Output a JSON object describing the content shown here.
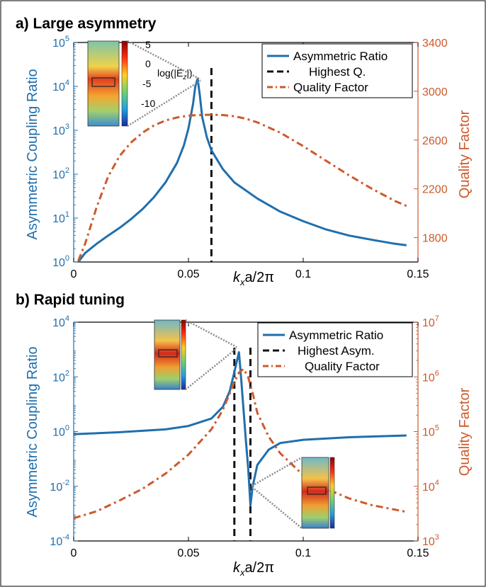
{
  "colors": {
    "blue": "#1f6fad",
    "orange": "#cc5a2b",
    "black": "#111111",
    "gray": "#888888"
  },
  "chart_data": [
    {
      "panel": "a",
      "title": "a) Large asymmetry",
      "type": "line",
      "x_range": [
        0,
        0.15
      ],
      "x_ticks": [
        "0",
        "0.05",
        "0.1",
        "0.15"
      ],
      "x_tick_values": [
        0,
        0.05,
        0.1,
        0.15
      ],
      "xlabel": {
        "k": "k",
        "sub": "x",
        "rest": "a/2π"
      },
      "ylabel_left": "Asymmetric Coupling Ratio",
      "ylabel_right": "Quality Factor",
      "y_left_scale": "log",
      "y_left_range_exp": [
        0,
        5
      ],
      "y_left_ticks_exp": [
        0,
        1,
        2,
        3,
        4,
        5
      ],
      "y_right_scale": "linear",
      "y_right_range": [
        1600,
        3400
      ],
      "y_right_ticks": [
        1800,
        2200,
        2600,
        3000,
        3400
      ],
      "legend": {
        "position": "top-right",
        "entries": [
          "Asymmetric Ratio",
          "Highest Q.",
          "Quality Factor"
        ]
      },
      "series": [
        {
          "name": "Asymmetric Ratio",
          "axis": "left",
          "style": "solid",
          "x": [
            0.002,
            0.005,
            0.01,
            0.015,
            0.02,
            0.025,
            0.03,
            0.035,
            0.04,
            0.045,
            0.048,
            0.05,
            0.052,
            0.053,
            0.054,
            0.055,
            0.056,
            0.058,
            0.06,
            0.065,
            0.07,
            0.08,
            0.09,
            0.1,
            0.11,
            0.12,
            0.13,
            0.14,
            0.145
          ],
          "y": [
            1,
            1.6,
            2.6,
            4,
            6,
            9.5,
            16,
            30,
            65,
            180,
            450,
            1100,
            4000,
            10000,
            15000,
            6000,
            2000,
            700,
            350,
            130,
            65,
            28,
            14,
            8.5,
            5.5,
            4,
            3.2,
            2.6,
            2.4
          ]
        },
        {
          "name": "Quality Factor",
          "axis": "right",
          "style": "dashdot",
          "x": [
            0.002,
            0.005,
            0.01,
            0.015,
            0.02,
            0.025,
            0.03,
            0.035,
            0.04,
            0.045,
            0.05,
            0.055,
            0.06,
            0.065,
            0.07,
            0.075,
            0.08,
            0.09,
            0.1,
            0.11,
            0.12,
            0.13,
            0.14,
            0.145
          ],
          "y": [
            1610,
            1750,
            2050,
            2300,
            2470,
            2580,
            2660,
            2720,
            2760,
            2785,
            2800,
            2805,
            2808,
            2805,
            2795,
            2775,
            2745,
            2660,
            2550,
            2430,
            2310,
            2200,
            2100,
            2060
          ]
        }
      ],
      "vlines": [
        {
          "name": "Highest Q.",
          "x": 0.06
        }
      ],
      "inset": {
        "colorbar_ticks": [
          "5",
          "0",
          "-5",
          "-10"
        ],
        "colorbar_label": {
          "pre": "log(|E",
          "sub": "z",
          "post": "|)"
        },
        "points_to_x": 0.054
      }
    },
    {
      "panel": "b",
      "title": "b) Rapid tuning",
      "type": "line",
      "x_range": [
        0,
        0.15
      ],
      "x_ticks": [
        "0",
        "0.05",
        "0.1",
        "0.15"
      ],
      "x_tick_values": [
        0,
        0.05,
        0.1,
        0.15
      ],
      "xlabel": {
        "k": "k",
        "sub": "x",
        "rest": "a/2π"
      },
      "ylabel_left": "Asymmetric Coupling Ratio",
      "ylabel_right": "Quality Factor",
      "y_left_scale": "log",
      "y_left_range_exp": [
        -4,
        4
      ],
      "y_left_ticks_exp": [
        -4,
        -2,
        0,
        2,
        4
      ],
      "y_right_scale": "log",
      "y_right_range_exp": [
        3,
        7
      ],
      "y_right_ticks_exp": [
        3,
        4,
        5,
        6,
        7
      ],
      "legend": {
        "position": "top-right",
        "entries": [
          "Asymmetric Ratio",
          "Highest Asym.",
          "Quality Factor"
        ]
      },
      "series": [
        {
          "name": "Asymmetric Ratio",
          "axis": "left",
          "style": "solid",
          "x": [
            0,
            0.02,
            0.04,
            0.05,
            0.06,
            0.065,
            0.068,
            0.07,
            0.072,
            0.073,
            0.074,
            0.075,
            0.076,
            0.0765,
            0.077,
            0.078,
            0.08,
            0.085,
            0.09,
            0.1,
            0.12,
            0.145
          ],
          "y": [
            0.8,
            0.95,
            1.2,
            1.6,
            3,
            8,
            30,
            150,
            800,
            80,
            6,
            0.5,
            0.05,
            0.01,
            0.002,
            0.01,
            0.06,
            0.22,
            0.38,
            0.5,
            0.62,
            0.72
          ]
        },
        {
          "name": "Quality Factor",
          "axis": "right",
          "style": "dashdot",
          "x": [
            0,
            0.01,
            0.02,
            0.03,
            0.04,
            0.05,
            0.06,
            0.065,
            0.07,
            0.072,
            0.074,
            0.076,
            0.078,
            0.08,
            0.085,
            0.09,
            0.1,
            0.11,
            0.12,
            0.13,
            0.145
          ],
          "y": [
            2600,
            3500,
            5500,
            9000,
            17000,
            38000,
            110000,
            250000,
            800000,
            1200000,
            1400000,
            1000000,
            500000,
            220000,
            80000,
            40000,
            16000,
            9000,
            6000,
            4500,
            3400
          ]
        }
      ],
      "vlines": [
        {
          "name": "Highest Asym.",
          "x": 0.07
        },
        {
          "name": "Highest Asym.",
          "x": 0.077
        }
      ],
      "insets": [
        {
          "points_to_x": 0.072
        },
        {
          "points_to_x": 0.077
        }
      ]
    }
  ]
}
